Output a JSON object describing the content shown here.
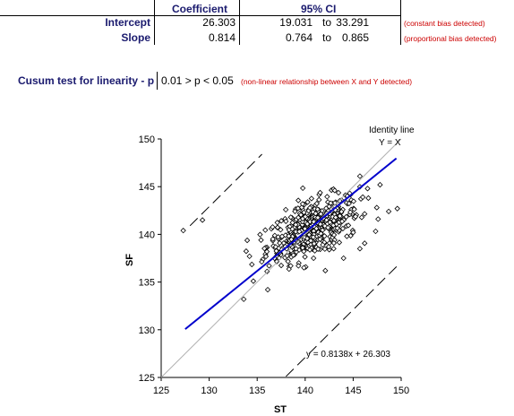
{
  "table": {
    "headers": [
      "Coefficient",
      "95% CI"
    ],
    "rows": [
      {
        "label": "Intercept",
        "coefficient": "26.303",
        "ci_low": "19.031",
        "ci_sep": "to",
        "ci_high": "33.291",
        "note": "(constant bias detected)"
      },
      {
        "label": "Slope",
        "coefficient": "0.814",
        "ci_low": "0.764",
        "ci_sep": "to",
        "ci_high": "0.865",
        "note": "(proportional bias detected)"
      }
    ]
  },
  "cusum": {
    "label": "Cusum test for linearity - p",
    "value": "0.01 > p < 0.05",
    "note": "(non-linear relationship between X and Y detected)"
  },
  "chart_data": {
    "type": "scatter",
    "xlabel": "ST",
    "ylabel": "SF",
    "xlim": [
      125,
      150
    ],
    "ylim": [
      125,
      150
    ],
    "xticks": [
      "125",
      "130",
      "135",
      "140",
      "145",
      "150"
    ],
    "yticks": [
      "125",
      "130",
      "135",
      "140",
      "145",
      "150"
    ],
    "identity_label_1": "Identity line",
    "identity_label_2": "Y = X",
    "regression_label": "y = 0.8138x + 26.303",
    "regression": {
      "slope": 0.8138,
      "intercept": 26.303,
      "x_range": [
        127.5,
        149.5
      ],
      "color": "#0000cc"
    },
    "ci_bands": {
      "offset": 12.9,
      "x_upper": [
        128,
        135.5
      ],
      "x_lower": [
        138,
        149.8
      ]
    },
    "outliers": [
      [
        127.3,
        140.4
      ],
      [
        129.3,
        141.5
      ],
      [
        133.6,
        133.2
      ],
      [
        134.6,
        135.1
      ],
      [
        136.1,
        134.2
      ],
      [
        149.6,
        142.7
      ],
      [
        148.7,
        142.4
      ],
      [
        147.6,
        141.6
      ],
      [
        147.8,
        145.2
      ],
      [
        146.0,
        143.9
      ],
      [
        145.7,
        146.1
      ],
      [
        145.7,
        138.5
      ],
      [
        144.0,
        137.5
      ],
      [
        142.1,
        136.2
      ],
      [
        139.3,
        136.7
      ],
      [
        136.8,
        137.5
      ],
      [
        145.0,
        140.2
      ],
      [
        135.4,
        139.4
      ],
      [
        134.2,
        137.7
      ],
      [
        146.5,
        144.8
      ]
    ],
    "cluster": {
      "n": 480,
      "center_x": 140.8,
      "center_y": 140.6,
      "spread_x": 2.4,
      "spread_y": 1.7,
      "corr": 0.55
    }
  }
}
